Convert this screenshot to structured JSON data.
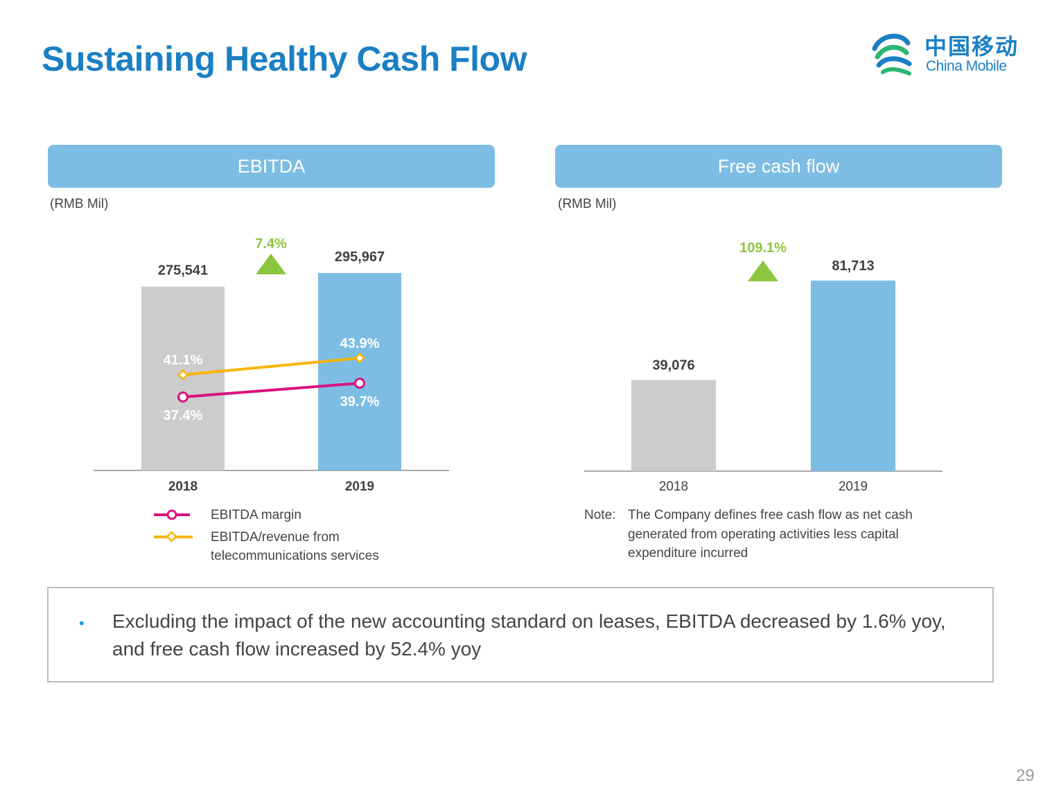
{
  "page": {
    "title": "Sustaining Healthy Cash Flow",
    "page_number": "29",
    "logo": {
      "cn": "中国移动",
      "en": "China Mobile"
    }
  },
  "colors": {
    "title": "#1b7fc4",
    "header": "#7dbde3",
    "bar_2018": "#cccccc",
    "bar_2019": "#7dbde3",
    "growth": "#8cc63f",
    "margin_line": "#d9127d",
    "revenue_line": "#f7b500"
  },
  "ebitda_panel": {
    "header": "EBITDA",
    "unit": "(RMB Mil)",
    "legend": {
      "margin": "EBITDA margin",
      "revenue_line1": "EBITDA/revenue from",
      "revenue_line2": "telecommunications services"
    }
  },
  "fcf_panel": {
    "header": "Free cash flow",
    "unit": "(RMB Mil)",
    "note_head": "Note:",
    "note_body": "The Company defines free cash flow as net cash generated from operating activities less capital expenditure incurred"
  },
  "summary": {
    "bullet": "Excluding the impact of the new accounting standard on leases, EBITDA decreased by 1.6% yoy, and free cash flow increased by 52.4% yoy"
  },
  "chart_data": [
    {
      "type": "bar",
      "title": "EBITDA",
      "categories": [
        "2018",
        "2019"
      ],
      "values": [
        275541,
        295967
      ],
      "value_labels": [
        "275,541",
        "295,967"
      ],
      "growth_label": "7.4%",
      "lines": [
        {
          "name": "EBITDA margin",
          "values": [
            37.4,
            39.7
          ],
          "labels": [
            "37.4%",
            "39.7%"
          ]
        },
        {
          "name": "EBITDA/revenue from telecommunications services",
          "values": [
            41.1,
            43.9
          ],
          "labels": [
            "41.1%",
            "43.9%"
          ]
        }
      ],
      "grid": false
    },
    {
      "type": "bar",
      "title": "Free cash flow",
      "categories": [
        "2018",
        "2019"
      ],
      "values": [
        39076,
        81713
      ],
      "value_labels": [
        "39,076",
        "81,713"
      ],
      "growth_label": "109.1%",
      "grid": false
    }
  ]
}
